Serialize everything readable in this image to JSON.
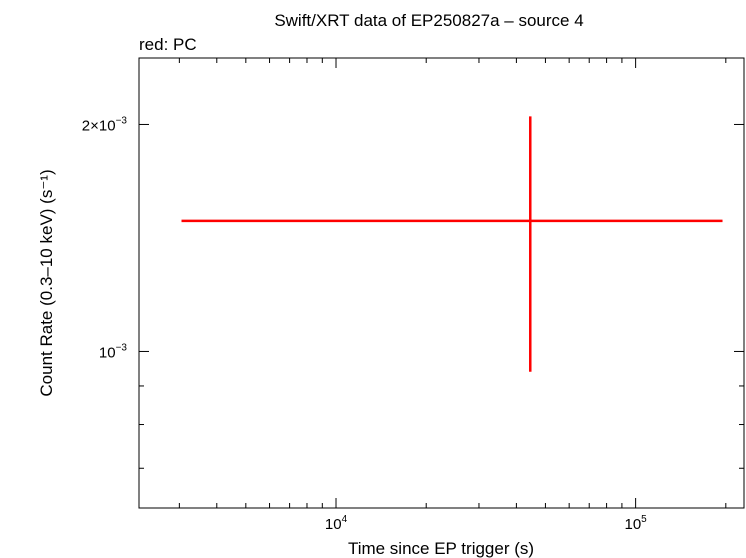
{
  "chart_data": {
    "type": "scatter",
    "title": "Swift/XRT data of EP250827a – source 4",
    "subtitle": "red: PC",
    "xlabel": "Time since EP trigger (s)",
    "ylabel": "Count Rate (0.3–10 keV) (s⁻¹)",
    "xscale": "log",
    "yscale": "log",
    "xlim": [
      2200,
      230000
    ],
    "ylim": [
      0.00062,
      0.00245
    ],
    "x_ticks": [
      {
        "value": 10000,
        "mantissa": "",
        "base": "10",
        "exp": "4"
      },
      {
        "value": 100000,
        "mantissa": "",
        "base": "10",
        "exp": "5"
      }
    ],
    "y_ticks": [
      {
        "value": 0.001,
        "mantissa": "",
        "base": "10",
        "exp": "−3"
      },
      {
        "value": 0.002,
        "mantissa": "2×",
        "base": "10",
        "exp": "−3"
      }
    ],
    "grid": false,
    "series": [
      {
        "color": "#ff0000",
        "points": [
          {
            "x": 44500,
            "x_low": 3050,
            "x_high": 195000,
            "y": 0.00149,
            "y_low": 0.00094,
            "y_high": 0.00205
          }
        ]
      }
    ]
  }
}
